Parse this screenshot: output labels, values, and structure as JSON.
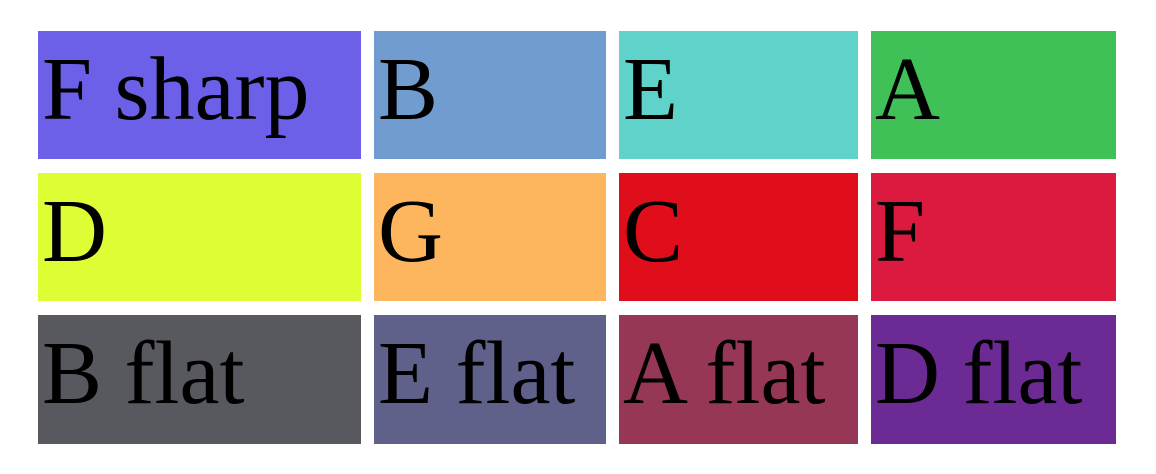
{
  "cells": [
    {
      "label": "F sharp",
      "color": "#6c60e8"
    },
    {
      "label": "B",
      "color": "#709ccf"
    },
    {
      "label": "E",
      "color": "#5fd2ca"
    },
    {
      "label": "A",
      "color": "#40c157"
    },
    {
      "label": "D",
      "color": "#dffd35"
    },
    {
      "label": "G",
      "color": "#fdb65e"
    },
    {
      "label": "C",
      "color": "#e00d1a"
    },
    {
      "label": "F",
      "color": "#dc1a40"
    },
    {
      "label": "B flat",
      "color": "#58585f"
    },
    {
      "label": "E flat",
      "color": "#60618a"
    },
    {
      "label": "A flat",
      "color": "#953755"
    },
    {
      "label": "D flat",
      "color": "#6c2a95"
    }
  ]
}
